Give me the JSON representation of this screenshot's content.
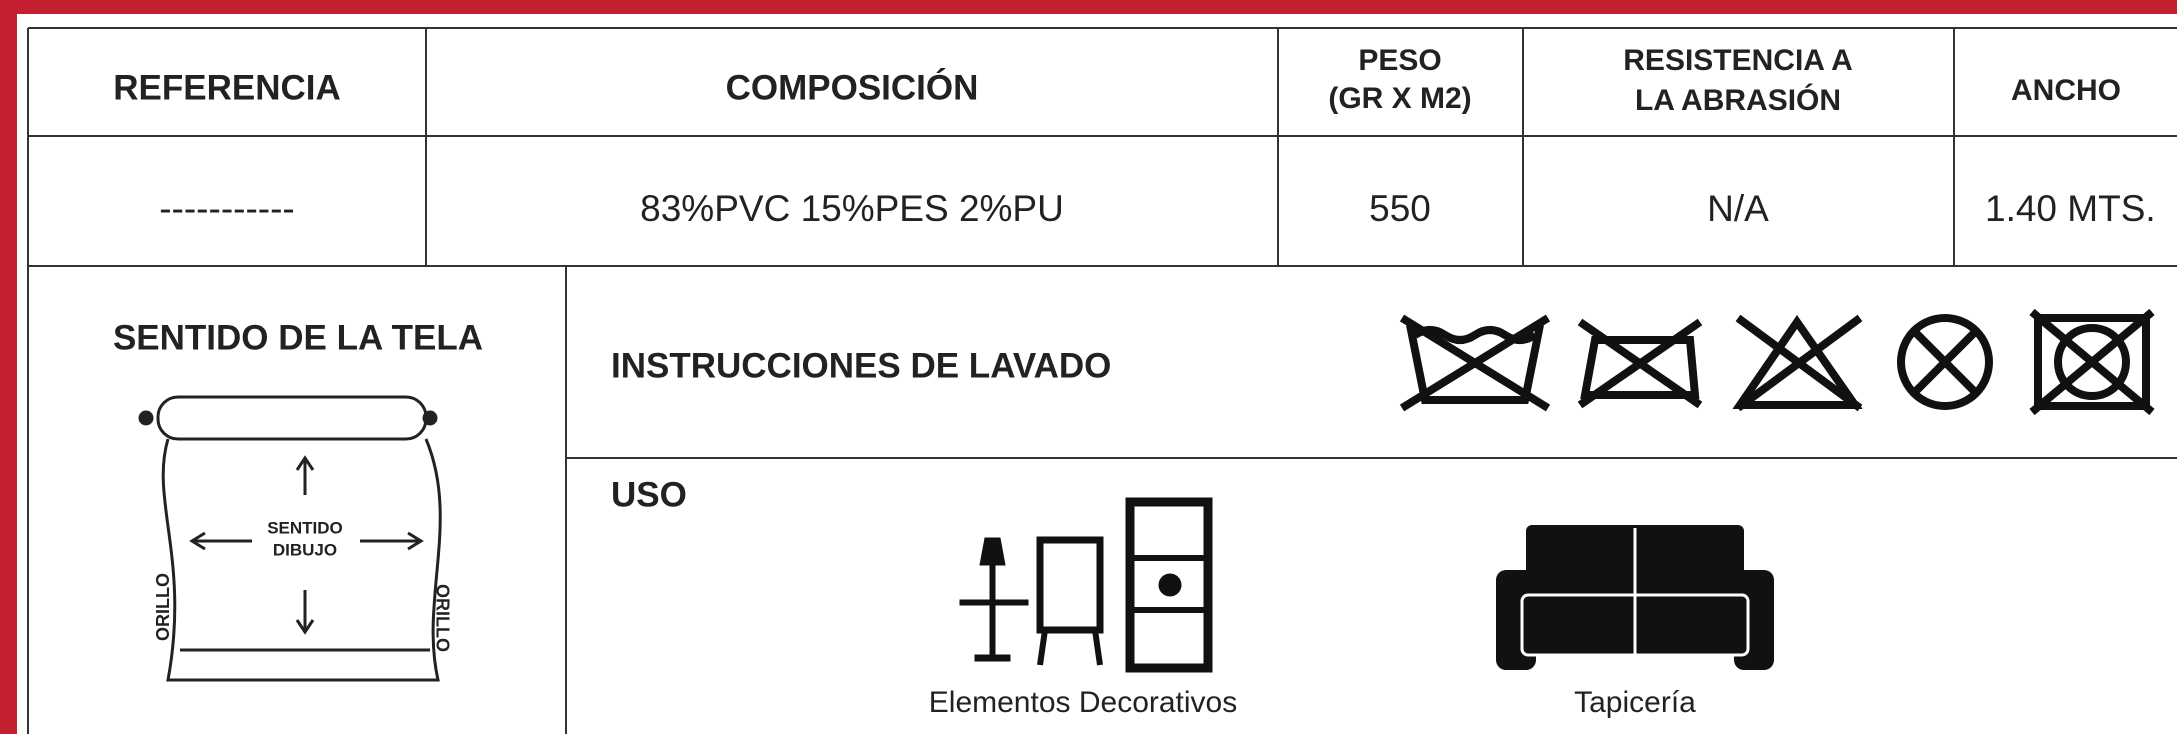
{
  "header_row": {
    "referencia": "REFERENCIA",
    "composicion": "COMPOSICIÓN",
    "peso": [
      "PESO",
      "(GR X M2)"
    ],
    "resistencia": [
      "RESISTENCIA A",
      "LA ABRASIÓN"
    ],
    "ancho": "ANCHO"
  },
  "value_row": {
    "referencia": "-----------",
    "composicion": "83%PVC 15%PES 2%PU",
    "peso": "550",
    "resistencia": "N/A",
    "ancho": "1.40 MTS."
  },
  "sentido": {
    "title": "SENTIDO DE LA TELA",
    "center": [
      "SENTIDO",
      "DIBUJO"
    ],
    "left_edge": "ORILLO",
    "right_edge": "ORILLO"
  },
  "lavado": {
    "title": "INSTRUCCIONES DE LAVADO"
  },
  "uso": {
    "title": "USO",
    "items": [
      "Elementos Decorativos",
      "Tapicería"
    ]
  }
}
